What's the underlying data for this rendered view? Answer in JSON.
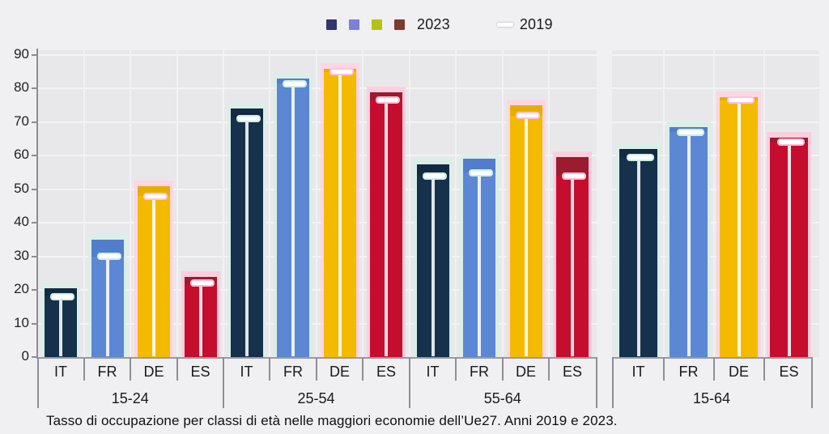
{
  "legend": {
    "label_2023": "2023",
    "label_2019": "2019",
    "keys_2023": [
      {
        "name": "IT",
        "color": "#32356b"
      },
      {
        "name": "FR",
        "color": "#7b80d8"
      },
      {
        "name": "DE",
        "color": "#b6c117"
      },
      {
        "name": "ES",
        "color": "#7d3a31"
      }
    ],
    "dash_color_2019": "#fdfdfd"
  },
  "axis": {
    "y_ticks": [
      0,
      10,
      20,
      30,
      40,
      50,
      60,
      70,
      80,
      90
    ],
    "y_min": 0,
    "y_max": 90
  },
  "caption": "Tasso di occupazione per classi di età nelle maggiori economie dell’Ue27. Anni 2019 e 2023.",
  "chart_data": {
    "type": "bar",
    "title": "",
    "xlabel": "",
    "ylabel": "",
    "ylim": [
      0,
      90
    ],
    "grid": true,
    "legend_position": "top",
    "note": "2023 shown as solid bars; 2019 shown as white dash markers (I-beam) inside bars; right-hand 15-64 panel uses dotted bars",
    "categories": [
      "15-24",
      "25-54",
      "55-64",
      "15-64"
    ],
    "countries": [
      {
        "code": "IT",
        "color": "#15314b",
        "band_color": "#112a40",
        "halo_color": "#d8efe8",
        "ring_color": "#cdeee4",
        "values_2023": [
          20.5,
          74,
          57.5,
          62
        ],
        "values_2019": [
          18,
          71,
          54,
          59.5
        ]
      },
      {
        "code": "FR",
        "color": "#5c87d5",
        "band_color": "#4d7ac9",
        "halo_color": "#d8efe8",
        "ring_color": "#cdeee4",
        "values_2023": [
          35,
          83,
          59,
          68.5
        ],
        "values_2019": [
          30,
          81.5,
          55,
          67
        ]
      },
      {
        "code": "DE",
        "color": "#f4ba00",
        "band_color": "#e2ab00",
        "halo_color": "#ffd2e2",
        "ring_color": "#ffc3d8",
        "values_2023": [
          51,
          86,
          75,
          77.5
        ],
        "values_2019": [
          48,
          85,
          72,
          76.5
        ]
      },
      {
        "code": "ES",
        "color": "#c50d2e",
        "band_color": "#8c2030",
        "halo_color": "#ffc9db",
        "ring_color": "#ffb9d2",
        "values_2023": [
          24,
          79,
          59.5,
          65.5
        ],
        "values_2019": [
          22,
          76.5,
          54,
          64
        ]
      }
    ]
  }
}
